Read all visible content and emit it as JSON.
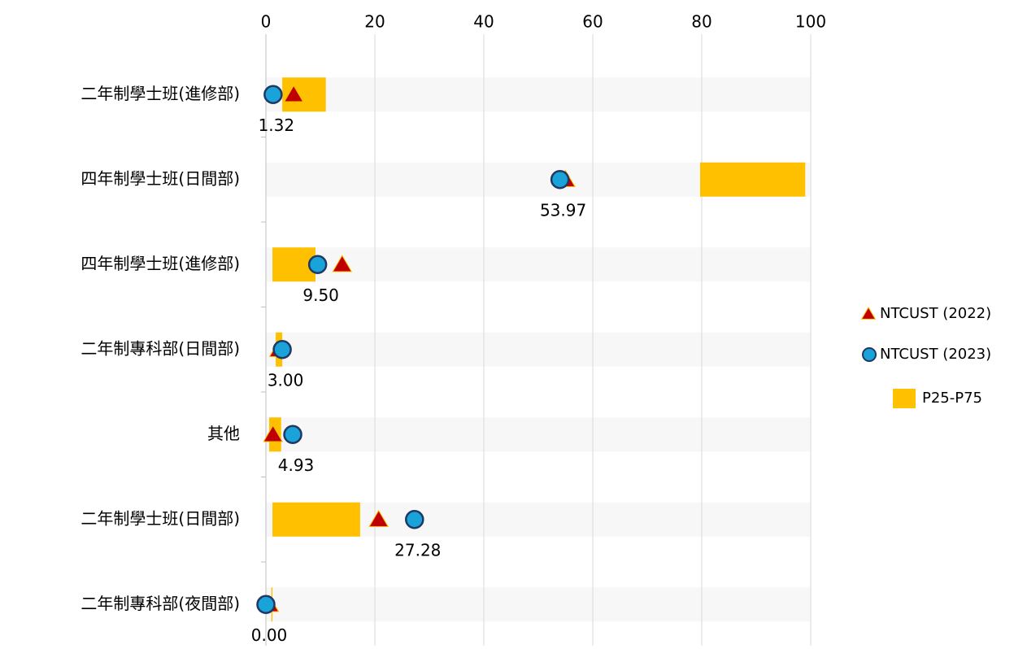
{
  "chart_data": {
    "type": "range-dot",
    "categories": [
      "二年制學士班(進修部)",
      "四年制學士班(日間部)",
      "四年制學士班(進修部)",
      "二年制專科部(日間部)",
      "其他",
      "二年制學士班(日間部)",
      "二年制專科部(夜間部)"
    ],
    "range": {
      "name": "P25-P75",
      "color": "#ffc000",
      "low": [
        3.0,
        79.7,
        1.2,
        1.8,
        0.6,
        1.2,
        1.0
      ],
      "high": [
        11.0,
        99.0,
        9.1,
        3.0,
        2.8,
        17.3,
        1.2
      ]
    },
    "series": [
      {
        "name": "NTCUST (2022)",
        "color": "#c00000",
        "marker": "triangle",
        "values": [
          5.1,
          55.0,
          14.0,
          2.4,
          1.3,
          20.7,
          0.6
        ]
      },
      {
        "name": "NTCUST (2023)",
        "color": "#1aa3d9",
        "marker": "circle",
        "values": [
          1.32,
          53.97,
          9.5,
          3.0,
          4.93,
          27.28,
          0.0
        ],
        "value_labels": [
          "1.32",
          "53.97",
          "9.50",
          "3.00",
          "4.93",
          "27.28",
          "0.00"
        ]
      }
    ],
    "xlim": [
      0,
      100
    ],
    "xticks": [
      0,
      20,
      40,
      60,
      80,
      100
    ],
    "grid": true,
    "legend": "right"
  }
}
